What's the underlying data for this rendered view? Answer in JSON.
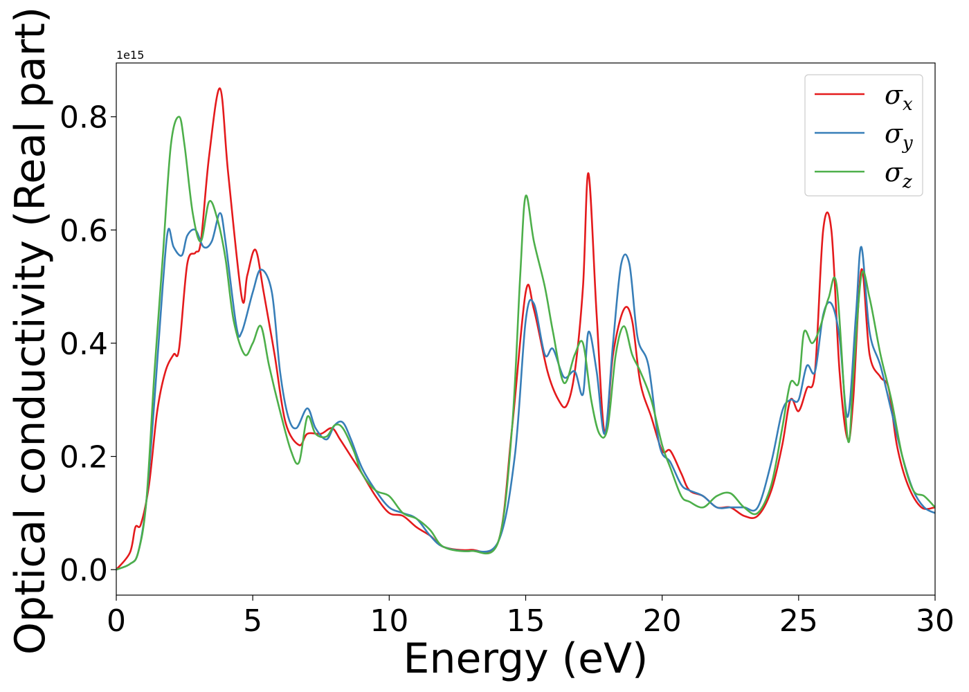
{
  "chart_data": {
    "type": "line",
    "xlabel": "Energy (eV)",
    "ylabel": "Optical conductivity (Real part)",
    "y_offset_label": "1e15",
    "xlim": [
      0,
      30
    ],
    "ylim": [
      -0.045,
      0.895
    ],
    "x_ticks": [
      0,
      5,
      10,
      15,
      20,
      25,
      30
    ],
    "x_tick_labels": [
      "0",
      "5",
      "10",
      "15",
      "20",
      "25",
      "30"
    ],
    "y_ticks": [
      0.0,
      0.2,
      0.4,
      0.6,
      0.8
    ],
    "y_tick_labels": [
      "0.0",
      "0.2",
      "0.4",
      "0.6",
      "0.8"
    ],
    "grid": false,
    "legend_position": "upper right",
    "series": [
      {
        "name": "σx",
        "symbol": "σ",
        "subscript": "x",
        "color": "#e41a1c",
        "x": [
          0,
          0.5,
          0.7,
          0.9,
          1.2,
          1.5,
          1.8,
          2.1,
          2.3,
          2.6,
          2.9,
          3.1,
          3.4,
          3.8,
          4.1,
          4.6,
          4.8,
          5.1,
          5.4,
          5.8,
          6.2,
          6.7,
          7.0,
          7.5,
          7.9,
          8.2,
          8.6,
          9.0,
          9.5,
          10.0,
          10.5,
          11.0,
          11.5,
          12.0,
          13.0,
          14.0,
          14.5,
          15.0,
          15.3,
          15.8,
          16.2,
          16.5,
          16.8,
          17.1,
          17.3,
          17.6,
          17.9,
          18.2,
          18.6,
          18.9,
          19.2,
          19.6,
          20.0,
          20.3,
          20.7,
          21.0,
          21.5,
          22.0,
          22.5,
          23.0,
          23.5,
          24.0,
          24.4,
          24.7,
          25.0,
          25.3,
          25.6,
          25.9,
          26.2,
          26.5,
          26.8,
          27.0,
          27.3,
          27.6,
          28.0,
          28.3,
          28.6,
          29.0,
          29.5,
          30.0
        ],
        "y": [
          0,
          0.03,
          0.075,
          0.08,
          0.15,
          0.28,
          0.35,
          0.38,
          0.39,
          0.54,
          0.56,
          0.58,
          0.73,
          0.85,
          0.7,
          0.48,
          0.52,
          0.565,
          0.49,
          0.38,
          0.26,
          0.22,
          0.24,
          0.24,
          0.25,
          0.23,
          0.2,
          0.17,
          0.13,
          0.1,
          0.095,
          0.075,
          0.06,
          0.04,
          0.035,
          0.05,
          0.25,
          0.49,
          0.46,
          0.35,
          0.3,
          0.29,
          0.35,
          0.5,
          0.7,
          0.45,
          0.24,
          0.38,
          0.46,
          0.44,
          0.33,
          0.27,
          0.21,
          0.21,
          0.17,
          0.14,
          0.13,
          0.11,
          0.11,
          0.095,
          0.095,
          0.14,
          0.22,
          0.3,
          0.28,
          0.32,
          0.35,
          0.6,
          0.6,
          0.35,
          0.23,
          0.3,
          0.53,
          0.38,
          0.34,
          0.32,
          0.22,
          0.15,
          0.11,
          0.11
        ]
      },
      {
        "name": "σy",
        "symbol": "σ",
        "subscript": "y",
        "color": "#377eb8",
        "x": [
          0,
          0.5,
          0.8,
          1.1,
          1.4,
          1.7,
          1.9,
          2.1,
          2.4,
          2.6,
          2.9,
          3.2,
          3.5,
          3.8,
          4.0,
          4.4,
          4.6,
          5.0,
          5.3,
          5.7,
          6.0,
          6.3,
          6.6,
          7.0,
          7.3,
          7.7,
          8.0,
          8.3,
          8.6,
          9.0,
          9.5,
          10.0,
          10.5,
          11.0,
          11.5,
          12.0,
          13.0,
          14.0,
          14.6,
          15.0,
          15.3,
          15.7,
          16.0,
          16.4,
          16.8,
          17.1,
          17.3,
          17.6,
          17.9,
          18.2,
          18.5,
          18.8,
          19.1,
          19.5,
          19.9,
          20.3,
          20.7,
          21.0,
          21.5,
          22.0,
          22.5,
          23.0,
          23.5,
          24.0,
          24.4,
          24.7,
          25.0,
          25.3,
          25.6,
          25.9,
          26.2,
          26.5,
          26.8,
          27.1,
          27.3,
          27.6,
          28.0,
          28.4,
          28.8,
          29.2,
          29.6,
          30.0
        ],
        "y": [
          0,
          0.01,
          0.03,
          0.12,
          0.3,
          0.5,
          0.6,
          0.57,
          0.555,
          0.59,
          0.6,
          0.57,
          0.58,
          0.63,
          0.58,
          0.43,
          0.42,
          0.49,
          0.53,
          0.49,
          0.35,
          0.27,
          0.25,
          0.285,
          0.25,
          0.23,
          0.255,
          0.26,
          0.23,
          0.18,
          0.14,
          0.11,
          0.1,
          0.09,
          0.06,
          0.04,
          0.033,
          0.05,
          0.2,
          0.44,
          0.47,
          0.38,
          0.39,
          0.34,
          0.35,
          0.31,
          0.42,
          0.35,
          0.24,
          0.4,
          0.54,
          0.54,
          0.41,
          0.36,
          0.22,
          0.19,
          0.15,
          0.14,
          0.13,
          0.11,
          0.11,
          0.11,
          0.11,
          0.19,
          0.28,
          0.3,
          0.3,
          0.36,
          0.35,
          0.45,
          0.47,
          0.41,
          0.27,
          0.45,
          0.57,
          0.42,
          0.36,
          0.28,
          0.2,
          0.14,
          0.11,
          0.1
        ]
      },
      {
        "name": "σz",
        "symbol": "σ",
        "subscript": "z",
        "color": "#4daf4a",
        "x": [
          0,
          0.5,
          0.8,
          1.1,
          1.4,
          1.7,
          2.0,
          2.3,
          2.5,
          2.8,
          3.1,
          3.4,
          3.7,
          4.0,
          4.3,
          4.7,
          5.0,
          5.3,
          5.6,
          6.0,
          6.4,
          6.7,
          7.0,
          7.3,
          7.7,
          8.0,
          8.3,
          8.7,
          9.0,
          9.5,
          10.0,
          10.5,
          11.0,
          11.5,
          12.0,
          13.0,
          14.0,
          14.5,
          14.8,
          15.0,
          15.3,
          15.7,
          16.0,
          16.4,
          16.8,
          17.1,
          17.4,
          17.7,
          18.0,
          18.3,
          18.6,
          18.9,
          19.2,
          19.6,
          20.0,
          20.3,
          20.7,
          21.0,
          21.5,
          22.0,
          22.5,
          23.0,
          23.5,
          24.0,
          24.4,
          24.7,
          25.0,
          25.2,
          25.5,
          25.8,
          26.1,
          26.4,
          26.8,
          27.0,
          27.3,
          27.6,
          28.0,
          28.4,
          28.8,
          29.2,
          29.6,
          30.0
        ],
        "y": [
          0,
          0.01,
          0.03,
          0.12,
          0.35,
          0.55,
          0.75,
          0.8,
          0.75,
          0.63,
          0.58,
          0.65,
          0.62,
          0.55,
          0.44,
          0.38,
          0.4,
          0.43,
          0.36,
          0.28,
          0.21,
          0.19,
          0.27,
          0.24,
          0.235,
          0.255,
          0.25,
          0.21,
          0.17,
          0.14,
          0.13,
          0.1,
          0.09,
          0.07,
          0.04,
          0.033,
          0.05,
          0.25,
          0.52,
          0.66,
          0.58,
          0.5,
          0.42,
          0.33,
          0.38,
          0.4,
          0.3,
          0.24,
          0.25,
          0.38,
          0.43,
          0.38,
          0.35,
          0.3,
          0.22,
          0.18,
          0.13,
          0.12,
          0.11,
          0.13,
          0.135,
          0.11,
          0.1,
          0.15,
          0.25,
          0.33,
          0.33,
          0.42,
          0.4,
          0.43,
          0.48,
          0.5,
          0.23,
          0.34,
          0.52,
          0.48,
          0.38,
          0.3,
          0.2,
          0.14,
          0.13,
          0.11
        ]
      }
    ]
  }
}
